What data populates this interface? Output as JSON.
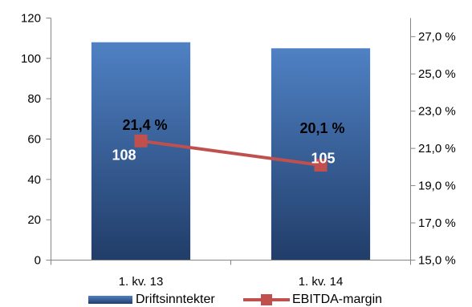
{
  "chart_data": {
    "type": "bar",
    "categories": [
      "1. kv. 13",
      "1. kv. 14"
    ],
    "series": [
      {
        "name": "Driftsinntekter",
        "type": "bar",
        "y_axis": "primary",
        "values": [
          108,
          105
        ],
        "value_labels": [
          "108",
          "105"
        ],
        "color": "#4f81c4",
        "gradient": [
          "#4f81c4",
          "#213d69"
        ],
        "label_color": "#ffffff"
      },
      {
        "name": "EBITDA-margin",
        "type": "line",
        "y_axis": "secondary",
        "marker": "square",
        "values": [
          21.4,
          20.1
        ],
        "value_labels": [
          "21,4 %",
          "20,1 %"
        ],
        "color": "#c0504d",
        "label_color": "#000000"
      }
    ],
    "ylim": [
      0,
      120
    ],
    "yticks": [
      0,
      20,
      40,
      60,
      80,
      100,
      120
    ],
    "ytick_labels": [
      "0",
      "20",
      "40",
      "60",
      "80",
      "100",
      "120"
    ],
    "y2lim": [
      15,
      28
    ],
    "y2ticks": [
      15,
      17,
      19,
      21,
      23,
      25,
      27
    ],
    "y2tick_labels": [
      "15,0 %",
      "17,0 %",
      "19,0 %",
      "21,0 %",
      "23,0 %",
      "25,0 %",
      "27,0 %"
    ],
    "grid": false,
    "legend": "bottom",
    "axis_color": "#868686"
  }
}
